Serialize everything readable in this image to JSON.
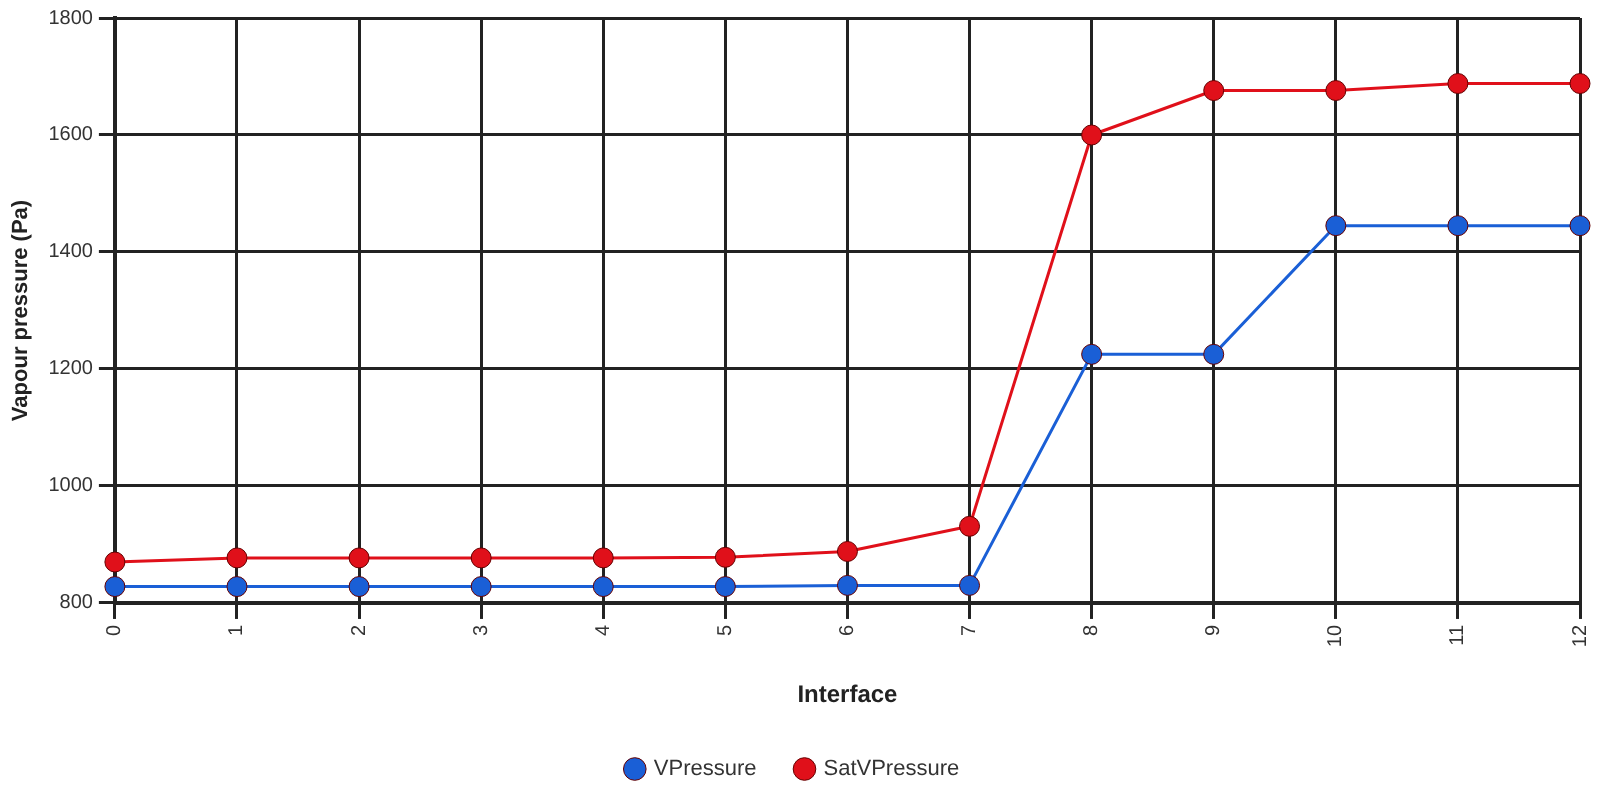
{
  "chart_data": {
    "type": "line",
    "xlabel": "Interface",
    "ylabel": "Vapour pressure (Pa)",
    "categories": [
      "0",
      "1",
      "2",
      "3",
      "4",
      "5",
      "6",
      "7",
      "8",
      "9",
      "10",
      "11",
      "12"
    ],
    "series": [
      {
        "name": "VPressure",
        "color": "#1a5fd6",
        "values": [
          828,
          828,
          828,
          828,
          828,
          828,
          830,
          830,
          1225,
          1225,
          1445,
          1445,
          1445
        ]
      },
      {
        "name": "SatVPressure",
        "color": "#e0101a",
        "values": [
          870,
          877,
          877,
          877,
          877,
          878,
          888,
          931,
          1600,
          1676,
          1676,
          1688,
          1688
        ]
      }
    ],
    "ylim": [
      800,
      1800
    ],
    "yticks": [
      800,
      1000,
      1200,
      1400,
      1600,
      1800
    ],
    "grid": true,
    "legend": "bottom",
    "marker": "circle",
    "line_style": "solid"
  }
}
